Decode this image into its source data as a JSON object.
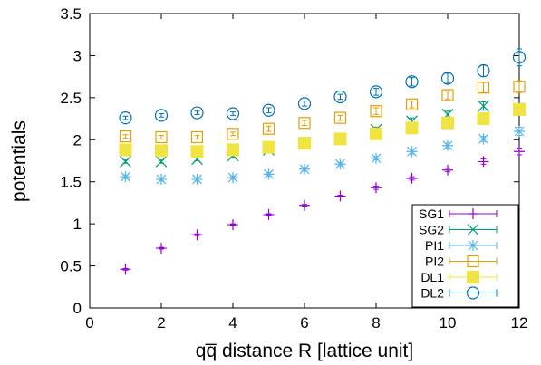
{
  "chart_data": {
    "type": "scatter",
    "title": "",
    "xlabel": "qq̅ distance R [lattice unit]",
    "ylabel": "potentials",
    "xlim": [
      0,
      12
    ],
    "ylim": [
      0,
      3.5
    ],
    "xticks": [
      0,
      2,
      4,
      6,
      8,
      10,
      12
    ],
    "yticks": [
      0,
      0.5,
      1,
      1.5,
      2,
      2.5,
      3,
      3.5
    ],
    "ytick_labels": [
      "0",
      "0.5",
      "1",
      "1.5",
      "2",
      "2.5",
      "3",
      "3.5"
    ],
    "grid": false,
    "legend_position": "bottom-right",
    "x": [
      1,
      2,
      3,
      4,
      5,
      6,
      7,
      8,
      9,
      10,
      11,
      12
    ],
    "series": [
      {
        "name": "SG1",
        "marker": "plus",
        "color": "#9400d3",
        "values": [
          0.46,
          0.71,
          0.87,
          0.99,
          1.11,
          1.22,
          1.33,
          1.43,
          1.54,
          1.64,
          1.74,
          1.86
        ],
        "errors": [
          0.01,
          0.01,
          0.01,
          0.01,
          0.01,
          0.01,
          0.01,
          0.02,
          0.02,
          0.02,
          0.03,
          0.04
        ]
      },
      {
        "name": "SG2",
        "marker": "cross",
        "color": "#009e73",
        "values": [
          1.74,
          1.74,
          1.77,
          1.81,
          1.88,
          1.95,
          2.01,
          2.12,
          2.22,
          2.3,
          2.4,
          2.37
        ],
        "errors": [
          0.02,
          0.02,
          0.02,
          0.02,
          0.02,
          0.03,
          0.03,
          0.03,
          0.04,
          0.04,
          0.05,
          0.06
        ]
      },
      {
        "name": "PI1",
        "marker": "star",
        "color": "#56b4e9",
        "values": [
          1.56,
          1.53,
          1.53,
          1.55,
          1.59,
          1.65,
          1.71,
          1.78,
          1.86,
          1.93,
          2.01,
          2.1
        ],
        "errors": [
          0.02,
          0.02,
          0.02,
          0.02,
          0.02,
          0.02,
          0.02,
          0.02,
          0.03,
          0.03,
          0.03,
          0.05
        ]
      },
      {
        "name": "PI2",
        "marker": "square",
        "color": "#e69f00",
        "values": [
          2.04,
          2.03,
          2.03,
          2.07,
          2.13,
          2.2,
          2.26,
          2.34,
          2.42,
          2.53,
          2.62,
          2.63
        ],
        "errors": [
          0.02,
          0.02,
          0.02,
          0.02,
          0.03,
          0.03,
          0.03,
          0.04,
          0.04,
          0.05,
          0.06,
          0.07
        ]
      },
      {
        "name": "DL1",
        "marker": "filled-square",
        "color": "#f0e442",
        "values": [
          1.88,
          1.87,
          1.86,
          1.88,
          1.91,
          1.96,
          2.01,
          2.07,
          2.14,
          2.2,
          2.25,
          2.36
        ],
        "errors": [
          0.01,
          0.01,
          0.01,
          0.01,
          0.01,
          0.02,
          0.02,
          0.02,
          0.02,
          0.03,
          0.03,
          0.04
        ]
      },
      {
        "name": "DL2",
        "marker": "circle",
        "color": "#0072b2",
        "values": [
          2.26,
          2.29,
          2.32,
          2.31,
          2.35,
          2.43,
          2.51,
          2.57,
          2.69,
          2.73,
          2.82,
          2.98
        ],
        "errors": [
          0.02,
          0.02,
          0.02,
          0.02,
          0.03,
          0.03,
          0.03,
          0.04,
          0.05,
          0.06,
          0.07,
          0.1
        ]
      }
    ]
  }
}
